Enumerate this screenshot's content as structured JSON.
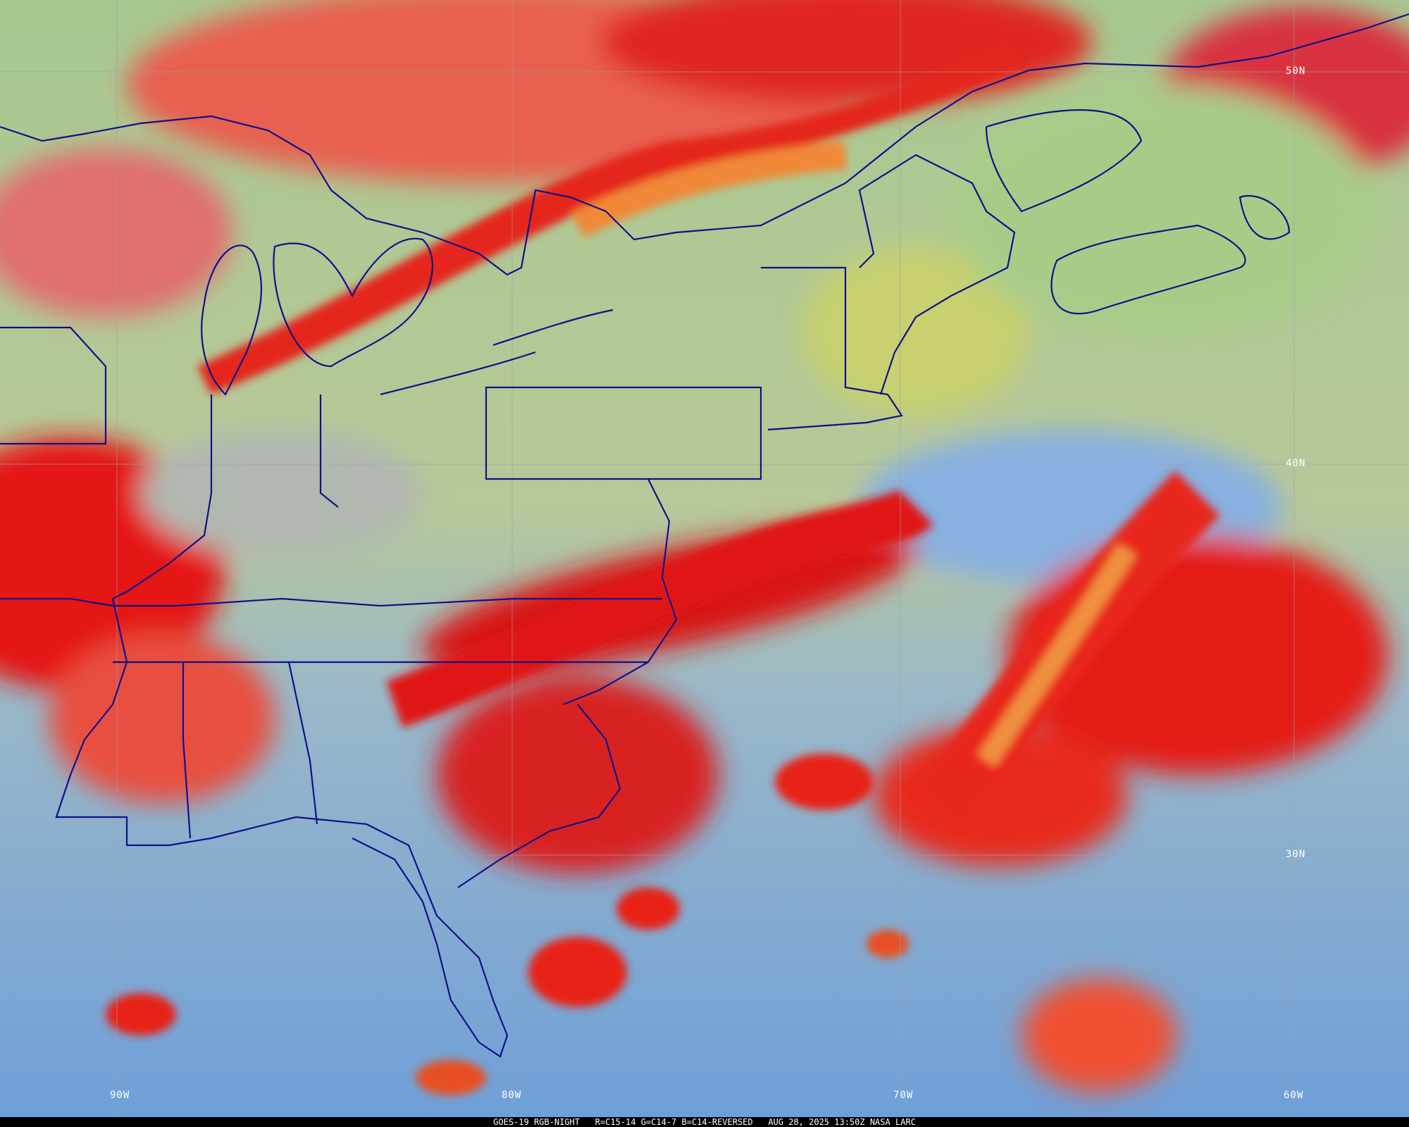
{
  "caption": {
    "satellite": "GOES-19 RGB-NIGHT",
    "channels": "R=C15-14 G=C14-7 B=C14-REVERSED",
    "datetime": "AUG 28, 2025 13:50Z NASA LARC"
  },
  "grid": {
    "lon_labels": [
      "90W",
      "80W",
      "70W",
      "60W"
    ],
    "lat_labels": [
      "50N",
      "40N",
      "30N"
    ]
  },
  "colors": {
    "clear_ocean": "#6f9fd8",
    "clear_land": "#a8c890",
    "high_cloud": "#e0201c",
    "mid_cloud": "#f08030",
    "boundaries": "#10108a",
    "grid": "#9aa0b0"
  }
}
